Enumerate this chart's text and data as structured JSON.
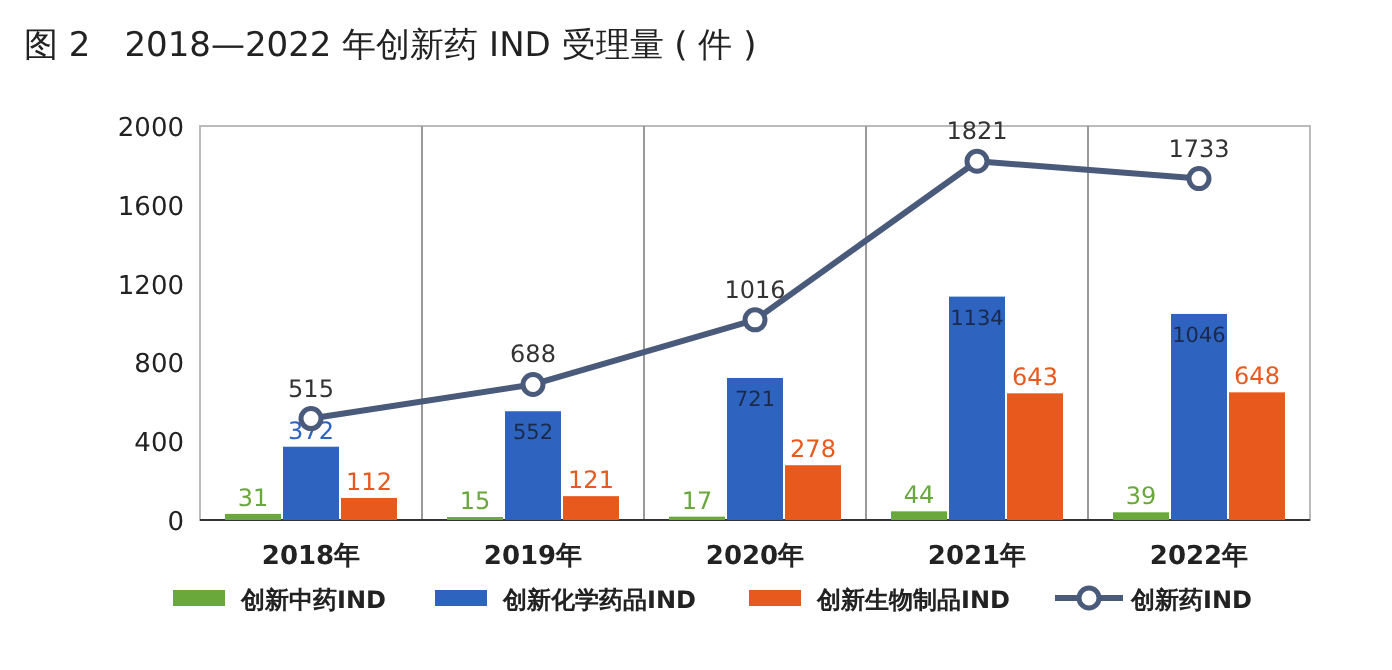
{
  "chart_data": {
    "type": "bar",
    "title": "图 2　2018—2022 年创新药 IND 受理量 ( 件 )",
    "categories": [
      "2018年",
      "2019年",
      "2020年",
      "2021年",
      "2022年"
    ],
    "series": [
      {
        "name": "创新中药IND",
        "color": "#6aa83c",
        "values": [
          31,
          15,
          17,
          44,
          39
        ]
      },
      {
        "name": "创新化学药品IND",
        "color": "#2e63c0",
        "values": [
          372,
          552,
          721,
          1134,
          1046
        ]
      },
      {
        "name": "创新生物制品IND",
        "color": "#e8591e",
        "values": [
          112,
          121,
          278,
          643,
          648
        ]
      },
      {
        "name": "创新药IND",
        "type": "line",
        "color": "#4a5a7a",
        "marker": "circle",
        "values": [
          515,
          688,
          1016,
          1821,
          1733
        ]
      }
    ],
    "ylim": [
      0,
      2000
    ],
    "yticks": [
      0,
      400,
      800,
      1200,
      1600,
      2000
    ],
    "grid": "x",
    "legend": "bottom",
    "data_labels": true
  }
}
